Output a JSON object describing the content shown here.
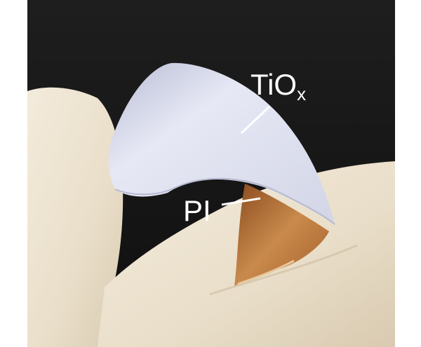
{
  "labels": {
    "tiox": {
      "main": "TiO",
      "subscript": "x"
    },
    "pi": "PI"
  },
  "colors": {
    "background": "#1a1a1a",
    "glove": "#eee4d4",
    "film_top": "#e4e6f4",
    "film_bottom": "#c08040",
    "label_text": "#ffffff"
  }
}
